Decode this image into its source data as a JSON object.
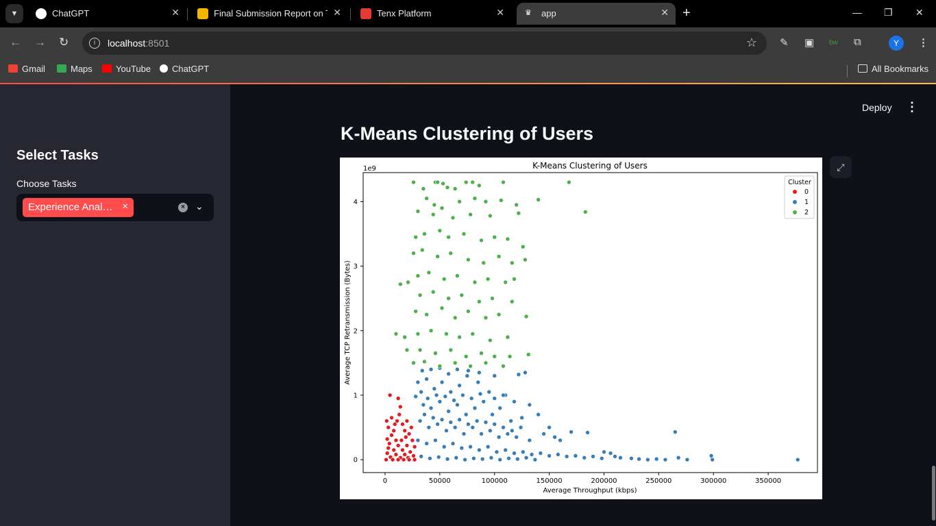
{
  "browser": {
    "tabs": [
      {
        "title": "ChatGPT",
        "active": false,
        "favicon_color": "#ffffff"
      },
      {
        "title": "Final Submission Report on Tell",
        "active": false,
        "favicon_color": "#f4b400"
      },
      {
        "title": "Tenx Platform",
        "active": false,
        "favicon_color": "#e53935"
      },
      {
        "title": "app",
        "active": true,
        "favicon_color": "#ffffff"
      }
    ],
    "url_host": "localhost",
    "url_port": ":8501",
    "avatar_letter": "Y",
    "bookmarks": [
      {
        "label": "Gmail",
        "color": "#ea4335"
      },
      {
        "label": "Maps",
        "color": "#34a853"
      },
      {
        "label": "YouTube",
        "color": "#ff0000"
      },
      {
        "label": "ChatGPT",
        "color": "#ffffff"
      }
    ],
    "all_bookmarks_label": "All Bookmarks"
  },
  "sidebar": {
    "title": "Select Tasks",
    "label": "Choose Tasks",
    "selected_chip": "Experience Analytics",
    "chip_remove": "×",
    "clear_icon": "×",
    "arrow_icon": "⌄"
  },
  "main": {
    "deploy_label": "Deploy",
    "menu_icon": "⋮",
    "heading": "K-Means Clustering of Users"
  },
  "chart_data": {
    "type": "scatter",
    "title": "K-Means Clustering of Users",
    "xlabel": "Average Throughput (kbps)",
    "ylabel": "Average TCP Retransmission (Bytes)",
    "y_scale_label": "1e9",
    "xlim": [
      -20000,
      395000
    ],
    "ylim": [
      -0.2,
      4.45
    ],
    "xticks": [
      0,
      50000,
      100000,
      150000,
      200000,
      250000,
      300000,
      350000
    ],
    "yticks": [
      0,
      1,
      2,
      3,
      4
    ],
    "legend": {
      "title": "Cluster",
      "position": "top-right"
    },
    "series": [
      {
        "name": "0",
        "color": "#e41a1c",
        "points": [
          [
            1500,
            0.6
          ],
          [
            4500,
            1.0
          ],
          [
            12000,
            0.95
          ],
          [
            14000,
            0.82
          ],
          [
            13000,
            0.7
          ],
          [
            11000,
            0.6
          ],
          [
            16000,
            0.55
          ],
          [
            20000,
            0.6
          ],
          [
            3000,
            0.5
          ],
          [
            8000,
            0.45
          ],
          [
            18000,
            0.45
          ],
          [
            22000,
            0.4
          ],
          [
            6000,
            0.38
          ],
          [
            2000,
            0.32
          ],
          [
            10000,
            0.3
          ],
          [
            15000,
            0.3
          ],
          [
            25000,
            0.3
          ],
          [
            4000,
            0.25
          ],
          [
            12000,
            0.22
          ],
          [
            20000,
            0.22
          ],
          [
            27000,
            0.2
          ],
          [
            8000,
            0.15
          ],
          [
            16000,
            0.15
          ],
          [
            23000,
            0.12
          ],
          [
            2000,
            0.1
          ],
          [
            10000,
            0.08
          ],
          [
            18000,
            0.08
          ],
          [
            26000,
            0.06
          ],
          [
            5000,
            0.04
          ],
          [
            14000,
            0.03
          ],
          [
            21000,
            0.03
          ],
          [
            1000,
            0.0
          ],
          [
            7000,
            0.0
          ],
          [
            12000,
            0.0
          ],
          [
            17000,
            0.0
          ],
          [
            22000,
            0.0
          ],
          [
            27000,
            0.0
          ],
          [
            3000,
            0.18
          ],
          [
            9000,
            0.55
          ],
          [
            19000,
            0.35
          ],
          [
            24000,
            0.5
          ],
          [
            6000,
            0.65
          ]
        ]
      },
      {
        "name": "1",
        "color": "#377eb8",
        "points": [
          [
            30000,
            1.2
          ],
          [
            33000,
            1.05
          ],
          [
            28000,
            0.98
          ],
          [
            38000,
            1.25
          ],
          [
            45000,
            1.1
          ],
          [
            52000,
            1.2
          ],
          [
            60000,
            1.05
          ],
          [
            68000,
            1.15
          ],
          [
            75000,
            1.3
          ],
          [
            85000,
            1.2
          ],
          [
            95000,
            1.05
          ],
          [
            110000,
            1.0
          ],
          [
            128000,
            1.35
          ],
          [
            122000,
            1.32
          ],
          [
            35000,
            0.85
          ],
          [
            42000,
            0.8
          ],
          [
            50000,
            0.9
          ],
          [
            58000,
            0.75
          ],
          [
            66000,
            0.85
          ],
          [
            74000,
            0.7
          ],
          [
            82000,
            0.8
          ],
          [
            90000,
            0.9
          ],
          [
            98000,
            0.7
          ],
          [
            105000,
            0.8
          ],
          [
            115000,
            0.6
          ],
          [
            125000,
            0.65
          ],
          [
            140000,
            0.7
          ],
          [
            32000,
            0.6
          ],
          [
            40000,
            0.5
          ],
          [
            48000,
            0.55
          ],
          [
            56000,
            0.45
          ],
          [
            64000,
            0.5
          ],
          [
            72000,
            0.4
          ],
          [
            80000,
            0.5
          ],
          [
            88000,
            0.4
          ],
          [
            96000,
            0.45
          ],
          [
            104000,
            0.35
          ],
          [
            112000,
            0.4
          ],
          [
            120000,
            0.35
          ],
          [
            132000,
            0.3
          ],
          [
            145000,
            0.4
          ],
          [
            160000,
            0.3
          ],
          [
            170000,
            0.43
          ],
          [
            185000,
            0.42
          ],
          [
            30000,
            0.3
          ],
          [
            38000,
            0.25
          ],
          [
            46000,
            0.3
          ],
          [
            54000,
            0.2
          ],
          [
            62000,
            0.25
          ],
          [
            70000,
            0.18
          ],
          [
            78000,
            0.2
          ],
          [
            86000,
            0.15
          ],
          [
            94000,
            0.2
          ],
          [
            102000,
            0.12
          ],
          [
            110000,
            0.15
          ],
          [
            118000,
            0.1
          ],
          [
            126000,
            0.12
          ],
          [
            134000,
            0.08
          ],
          [
            142000,
            0.1
          ],
          [
            150000,
            0.06
          ],
          [
            158000,
            0.08
          ],
          [
            166000,
            0.05
          ],
          [
            174000,
            0.06
          ],
          [
            182000,
            0.03
          ],
          [
            190000,
            0.05
          ],
          [
            198000,
            0.02
          ],
          [
            206000,
            0.1
          ],
          [
            215000,
            0.03
          ],
          [
            225000,
            0.02
          ],
          [
            232000,
            0.01
          ],
          [
            240000,
            0.0
          ],
          [
            248000,
            0.01
          ],
          [
            256000,
            0.0
          ],
          [
            265000,
            0.43
          ],
          [
            268000,
            0.03
          ],
          [
            276000,
            0.0
          ],
          [
            298000,
            0.06
          ],
          [
            299000,
            0.0
          ],
          [
            377000,
            0.0
          ],
          [
            33000,
            0.05
          ],
          [
            41000,
            0.02
          ],
          [
            49000,
            0.04
          ],
          [
            57000,
            0.01
          ],
          [
            65000,
            0.03
          ],
          [
            73000,
            0.0
          ],
          [
            81000,
            0.02
          ],
          [
            89000,
            0.01
          ],
          [
            97000,
            0.03
          ],
          [
            105000,
            0.0
          ],
          [
            113000,
            0.02
          ],
          [
            121000,
            0.01
          ],
          [
            129000,
            0.03
          ],
          [
            137000,
            0.0
          ],
          [
            36000,
            0.7
          ],
          [
            44000,
            0.65
          ],
          [
            52000,
            0.62
          ],
          [
            60000,
            0.58
          ],
          [
            68000,
            0.62
          ],
          [
            76000,
            0.55
          ],
          [
            84000,
            0.6
          ],
          [
            92000,
            0.58
          ],
          [
            100000,
            0.55
          ],
          [
            108000,
            0.5
          ],
          [
            116000,
            0.45
          ],
          [
            124000,
            0.5
          ],
          [
            39000,
            0.95
          ],
          [
            47000,
            1.0
          ],
          [
            55000,
            0.98
          ],
          [
            63000,
            0.92
          ],
          [
            71000,
            1.0
          ],
          [
            79000,
            0.95
          ],
          [
            87000,
            1.02
          ],
          [
            100000,
            0.95
          ],
          [
            108000,
            1.0
          ],
          [
            118000,
            0.9
          ],
          [
            132000,
            0.85
          ],
          [
            34000,
            1.38
          ],
          [
            42000,
            1.4
          ],
          [
            50000,
            1.42
          ],
          [
            58000,
            1.33
          ],
          [
            66000,
            1.4
          ],
          [
            76000,
            1.38
          ],
          [
            86000,
            1.35
          ],
          [
            100000,
            1.3
          ],
          [
            150000,
            0.5
          ],
          [
            155000,
            0.35
          ],
          [
            200000,
            0.12
          ],
          [
            210000,
            0.05
          ]
        ]
      },
      {
        "name": "2",
        "color": "#4daf4a",
        "points": [
          [
            26000,
            4.3
          ],
          [
            35000,
            4.2
          ],
          [
            46000,
            4.3
          ],
          [
            48000,
            4.3
          ],
          [
            53000,
            4.28
          ],
          [
            57000,
            4.22
          ],
          [
            64000,
            4.2
          ],
          [
            74000,
            4.3
          ],
          [
            80000,
            4.3
          ],
          [
            86000,
            4.25
          ],
          [
            108000,
            4.3
          ],
          [
            168000,
            4.3
          ],
          [
            140000,
            4.03
          ],
          [
            183000,
            3.84
          ],
          [
            38000,
            4.05
          ],
          [
            45000,
            3.95
          ],
          [
            52000,
            3.9
          ],
          [
            68000,
            4.0
          ],
          [
            82000,
            4.05
          ],
          [
            92000,
            4.0
          ],
          [
            106000,
            4.02
          ],
          [
            120000,
            3.95
          ],
          [
            30000,
            3.85
          ],
          [
            44000,
            3.8
          ],
          [
            62000,
            3.75
          ],
          [
            78000,
            3.8
          ],
          [
            96000,
            3.78
          ],
          [
            122000,
            3.82
          ],
          [
            28000,
            3.45
          ],
          [
            36000,
            3.5
          ],
          [
            50000,
            3.55
          ],
          [
            58000,
            3.45
          ],
          [
            72000,
            3.5
          ],
          [
            88000,
            3.4
          ],
          [
            100000,
            3.45
          ],
          [
            112000,
            3.42
          ],
          [
            126000,
            3.3
          ],
          [
            26000,
            3.2
          ],
          [
            34000,
            3.25
          ],
          [
            48000,
            3.15
          ],
          [
            60000,
            3.2
          ],
          [
            76000,
            3.1
          ],
          [
            90000,
            3.05
          ],
          [
            104000,
            3.15
          ],
          [
            116000,
            3.05
          ],
          [
            128000,
            3.1
          ],
          [
            30000,
            2.85
          ],
          [
            40000,
            2.9
          ],
          [
            54000,
            2.8
          ],
          [
            66000,
            2.85
          ],
          [
            82000,
            2.75
          ],
          [
            94000,
            2.8
          ],
          [
            110000,
            2.75
          ],
          [
            118000,
            2.8
          ],
          [
            14000,
            2.72
          ],
          [
            21000,
            2.75
          ],
          [
            32000,
            2.55
          ],
          [
            44000,
            2.6
          ],
          [
            58000,
            2.5
          ],
          [
            70000,
            2.55
          ],
          [
            86000,
            2.45
          ],
          [
            98000,
            2.5
          ],
          [
            116000,
            2.45
          ],
          [
            28000,
            2.3
          ],
          [
            38000,
            2.25
          ],
          [
            52000,
            2.35
          ],
          [
            64000,
            2.2
          ],
          [
            76000,
            2.3
          ],
          [
            92000,
            2.2
          ],
          [
            104000,
            2.25
          ],
          [
            129000,
            2.22
          ],
          [
            10000,
            1.95
          ],
          [
            18000,
            1.9
          ],
          [
            30000,
            1.95
          ],
          [
            42000,
            2.0
          ],
          [
            56000,
            1.95
          ],
          [
            68000,
            1.9
          ],
          [
            80000,
            1.95
          ],
          [
            96000,
            1.85
          ],
          [
            112000,
            1.9
          ],
          [
            20000,
            1.7
          ],
          [
            32000,
            1.7
          ],
          [
            46000,
            1.65
          ],
          [
            60000,
            1.7
          ],
          [
            74000,
            1.6
          ],
          [
            88000,
            1.65
          ],
          [
            100000,
            1.6
          ],
          [
            114000,
            1.6
          ],
          [
            131000,
            1.63
          ],
          [
            26000,
            1.5
          ],
          [
            36000,
            1.52
          ],
          [
            50000,
            1.45
          ],
          [
            64000,
            1.5
          ],
          [
            78000,
            1.45
          ],
          [
            92000,
            1.5
          ],
          [
            108000,
            1.45
          ]
        ]
      }
    ]
  }
}
